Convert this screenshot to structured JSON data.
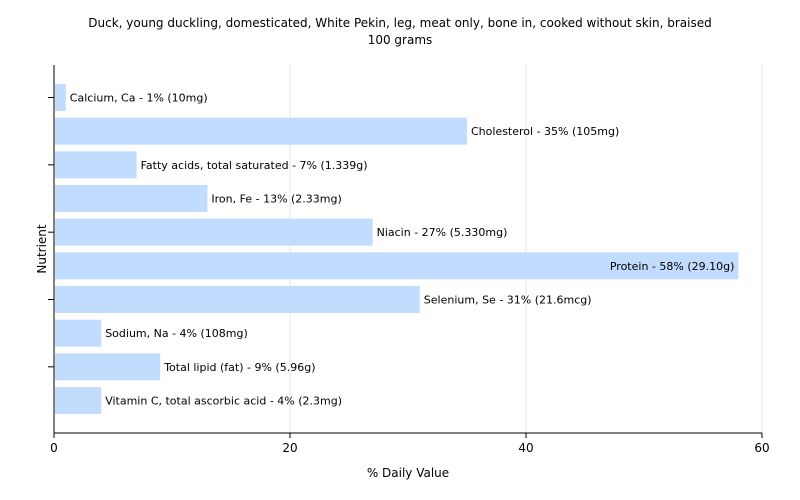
{
  "chart_data": {
    "type": "bar",
    "orientation": "horizontal",
    "title": "Duck, young duckling, domesticated, White Pekin, leg, meat only, bone in, cooked without skin, braised",
    "subtitle": "100 grams",
    "xlabel": "% Daily Value",
    "ylabel": "Nutrient",
    "xlim": [
      0,
      60
    ],
    "xticks": [
      "0",
      "20",
      "40",
      "60"
    ],
    "grid": true,
    "categories": [
      "Calcium, Ca",
      "Cholesterol",
      "Fatty acids, total saturated",
      "Iron, Fe",
      "Niacin",
      "Protein",
      "Selenium, Se",
      "Sodium, Na",
      "Total lipid (fat)",
      "Vitamin C, total ascorbic acid"
    ],
    "values": [
      1,
      35,
      7,
      13,
      27,
      58,
      31,
      4,
      9,
      4
    ],
    "labels": [
      "Calcium, Ca - 1% (10mg)",
      "Cholesterol - 35% (105mg)",
      "Fatty acids, total saturated - 7% (1.339g)",
      "Iron, Fe - 13% (2.33mg)",
      "Niacin - 27% (5.330mg)",
      "Protein - 58% (29.10g)",
      "Selenium, Se - 31% (21.6mcg)",
      "Sodium, Na - 4% (108mg)",
      "Total lipid (fat) - 9% (5.96g)",
      "Vitamin C, total ascorbic acid - 4% (2.3mg)"
    ],
    "bar_color": "#c2dcff"
  }
}
